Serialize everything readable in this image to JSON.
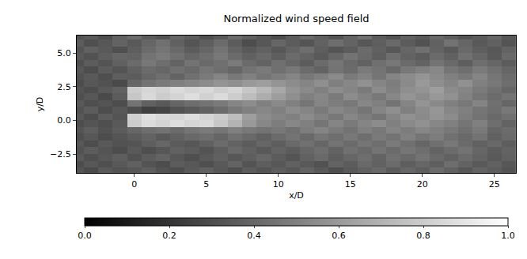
{
  "chart_data": {
    "type": "heatmap",
    "title": "Normalized wind speed field",
    "xlabel": "x/D",
    "ylabel": "y/D",
    "xlim": [
      -4,
      26.5
    ],
    "ylim": [
      -3.9,
      6.3
    ],
    "xticks": [
      0,
      5,
      10,
      15,
      20,
      25
    ],
    "yticks": [
      {
        "value": -2.5,
        "label": "−2.5"
      },
      {
        "value": 0,
        "label": "0.0"
      },
      {
        "value": 2.5,
        "label": "2.5"
      },
      {
        "value": 5,
        "label": "5.0"
      }
    ],
    "colorbar_range": [
      0,
      1
    ],
    "colorbar_ticks": [
      {
        "value": 0,
        "label": "0.0"
      },
      0.2,
      0.4,
      0.6,
      0.8,
      {
        "value": 1,
        "label": "1.0"
      }
    ],
    "x": [
      -4,
      -3,
      -2,
      -1,
      0,
      1,
      2,
      3,
      4,
      5,
      6,
      7,
      8,
      9,
      10,
      11,
      12,
      13,
      14,
      15,
      16,
      17,
      18,
      19,
      20,
      21,
      22,
      23,
      24,
      25,
      26
    ],
    "y": [
      -3.75,
      -3.25,
      -2.75,
      -2.25,
      -1.75,
      -1.25,
      -0.75,
      -0.25,
      0.25,
      0.75,
      1.25,
      1.75,
      2.25,
      2.75,
      3.25,
      3.75,
      4.25,
      4.75,
      5.25,
      5.75,
      6.25
    ],
    "z": [
      [
        0.33,
        0.29,
        0.35,
        0.32,
        0.34,
        0.37,
        0.32,
        0.3,
        0.35,
        0.38,
        0.34,
        0.31,
        0.36,
        0.33,
        0.37,
        0.34,
        0.39,
        0.35,
        0.31,
        0.35,
        0.38,
        0.41,
        0.36,
        0.4,
        0.37,
        0.42,
        0.38,
        0.34,
        0.39,
        0.36,
        0.33
      ],
      [
        0.3,
        0.34,
        0.31,
        0.35,
        0.38,
        0.33,
        0.3,
        0.36,
        0.34,
        0.31,
        0.35,
        0.39,
        0.33,
        0.37,
        0.34,
        0.38,
        0.35,
        0.32,
        0.39,
        0.36,
        0.41,
        0.38,
        0.42,
        0.37,
        0.4,
        0.37,
        0.43,
        0.39,
        0.35,
        0.38,
        0.34
      ],
      [
        0.35,
        0.31,
        0.34,
        0.37,
        0.32,
        0.36,
        0.39,
        0.34,
        0.31,
        0.35,
        0.38,
        0.34,
        0.37,
        0.4,
        0.36,
        0.33,
        0.38,
        0.41,
        0.37,
        0.4,
        0.43,
        0.39,
        0.44,
        0.41,
        0.45,
        0.41,
        0.38,
        0.42,
        0.39,
        0.35,
        0.38
      ],
      [
        0.32,
        0.36,
        0.33,
        0.3,
        0.35,
        0.31,
        0.34,
        0.38,
        0.36,
        0.33,
        0.37,
        0.41,
        0.38,
        0.35,
        0.39,
        0.36,
        0.4,
        0.43,
        0.39,
        0.44,
        0.41,
        0.45,
        0.42,
        0.46,
        0.43,
        0.39,
        0.42,
        0.45,
        0.4,
        0.36,
        0.39
      ],
      [
        0.34,
        0.3,
        0.35,
        0.32,
        0.33,
        0.37,
        0.4,
        0.36,
        0.34,
        0.38,
        0.42,
        0.39,
        0.36,
        0.4,
        0.37,
        0.41,
        0.44,
        0.4,
        0.45,
        0.42,
        0.46,
        0.43,
        0.48,
        0.44,
        0.4,
        0.44,
        0.47,
        0.42,
        0.38,
        0.41,
        0.37
      ],
      [
        0.31,
        0.34,
        0.3,
        0.33,
        0.36,
        0.39,
        0.35,
        0.38,
        0.41,
        0.43,
        0.4,
        0.44,
        0.41,
        0.38,
        0.42,
        0.45,
        0.41,
        0.46,
        0.43,
        0.47,
        0.43,
        0.48,
        0.45,
        0.5,
        0.46,
        0.49,
        0.44,
        0.41,
        0.45,
        0.38,
        0.41
      ],
      [
        0.33,
        0.37,
        0.32,
        0.36,
        0.4,
        0.43,
        0.45,
        0.42,
        0.46,
        0.48,
        0.46,
        0.5,
        0.47,
        0.45,
        0.47,
        0.44,
        0.49,
        0.52,
        0.48,
        0.45,
        0.5,
        0.47,
        0.52,
        0.49,
        0.53,
        0.5,
        0.47,
        0.44,
        0.48,
        0.4,
        0.42
      ],
      [
        0.3,
        0.33,
        0.31,
        0.35,
        0.8,
        0.86,
        0.83,
        0.87,
        0.84,
        0.85,
        0.78,
        0.7,
        0.6,
        0.53,
        0.49,
        0.53,
        0.5,
        0.46,
        0.52,
        0.48,
        0.52,
        0.55,
        0.5,
        0.54,
        0.57,
        0.53,
        0.5,
        0.46,
        0.5,
        0.43,
        0.39
      ],
      [
        0.34,
        0.3,
        0.36,
        0.33,
        0.82,
        0.88,
        0.85,
        0.84,
        0.87,
        0.83,
        0.8,
        0.74,
        0.62,
        0.55,
        0.52,
        0.5,
        0.55,
        0.51,
        0.47,
        0.53,
        0.49,
        0.46,
        0.52,
        0.57,
        0.54,
        0.58,
        0.55,
        0.49,
        0.45,
        0.41,
        0.44
      ],
      [
        0.32,
        0.36,
        0.3,
        0.34,
        0.3,
        0.25,
        0.27,
        0.32,
        0.35,
        0.38,
        0.42,
        0.47,
        0.5,
        0.53,
        0.5,
        0.55,
        0.52,
        0.48,
        0.53,
        0.5,
        0.46,
        0.52,
        0.56,
        0.5,
        0.55,
        0.59,
        0.53,
        0.5,
        0.46,
        0.43,
        0.47
      ],
      [
        0.35,
        0.31,
        0.33,
        0.3,
        0.45,
        0.38,
        0.35,
        0.4,
        0.43,
        0.45,
        0.48,
        0.52,
        0.55,
        0.5,
        0.54,
        0.5,
        0.46,
        0.52,
        0.49,
        0.47,
        0.53,
        0.5,
        0.45,
        0.52,
        0.58,
        0.54,
        0.5,
        0.47,
        0.52,
        0.44,
        0.4
      ],
      [
        0.31,
        0.34,
        0.29,
        0.36,
        0.78,
        0.85,
        0.8,
        0.83,
        0.87,
        0.82,
        0.86,
        0.8,
        0.74,
        0.68,
        0.62,
        0.56,
        0.5,
        0.53,
        0.48,
        0.55,
        0.51,
        0.47,
        0.53,
        0.58,
        0.55,
        0.6,
        0.57,
        0.51,
        0.46,
        0.42,
        0.45
      ],
      [
        0.33,
        0.3,
        0.35,
        0.38,
        0.8,
        0.84,
        0.82,
        0.86,
        0.83,
        0.85,
        0.81,
        0.84,
        0.78,
        0.72,
        0.66,
        0.58,
        0.54,
        0.5,
        0.55,
        0.52,
        0.48,
        0.55,
        0.5,
        0.56,
        0.58,
        0.62,
        0.55,
        0.52,
        0.48,
        0.44,
        0.4
      ],
      [
        0.3,
        0.34,
        0.32,
        0.29,
        0.4,
        0.45,
        0.48,
        0.5,
        0.52,
        0.55,
        0.58,
        0.56,
        0.6,
        0.62,
        0.58,
        0.55,
        0.52,
        0.56,
        0.5,
        0.53,
        0.57,
        0.52,
        0.49,
        0.54,
        0.6,
        0.56,
        0.52,
        0.57,
        0.5,
        0.47,
        0.43
      ],
      [
        0.32,
        0.35,
        0.31,
        0.37,
        0.36,
        0.4,
        0.43,
        0.39,
        0.44,
        0.48,
        0.52,
        0.47,
        0.5,
        0.46,
        0.49,
        0.52,
        0.47,
        0.5,
        0.54,
        0.48,
        0.51,
        0.46,
        0.52,
        0.55,
        0.58,
        0.54,
        0.5,
        0.47,
        0.52,
        0.46,
        0.42
      ],
      [
        0.34,
        0.3,
        0.36,
        0.33,
        0.38,
        0.42,
        0.4,
        0.44,
        0.41,
        0.46,
        0.43,
        0.4,
        0.45,
        0.48,
        0.44,
        0.47,
        0.42,
        0.39,
        0.45,
        0.42,
        0.48,
        0.45,
        0.41,
        0.47,
        0.5,
        0.53,
        0.46,
        0.43,
        0.48,
        0.44,
        0.4
      ],
      [
        0.31,
        0.36,
        0.33,
        0.38,
        0.42,
        0.47,
        0.43,
        0.39,
        0.45,
        0.41,
        0.44,
        0.48,
        0.42,
        0.39,
        0.44,
        0.4,
        0.36,
        0.42,
        0.46,
        0.41,
        0.38,
        0.44,
        0.47,
        0.42,
        0.39,
        0.45,
        0.41,
        0.37,
        0.43,
        0.4,
        0.36
      ],
      [
        0.35,
        0.32,
        0.37,
        0.4,
        0.39,
        0.45,
        0.48,
        0.44,
        0.4,
        0.43,
        0.47,
        0.42,
        0.38,
        0.41,
        0.37,
        0.42,
        0.39,
        0.35,
        0.4,
        0.45,
        0.41,
        0.37,
        0.43,
        0.39,
        0.36,
        0.42,
        0.38,
        0.44,
        0.4,
        0.35,
        0.41
      ],
      [
        0.33,
        0.38,
        0.35,
        0.31,
        0.37,
        0.42,
        0.46,
        0.41,
        0.36,
        0.4,
        0.45,
        0.39,
        0.35,
        0.38,
        0.34,
        0.39,
        0.43,
        0.37,
        0.33,
        0.36,
        0.42,
        0.38,
        0.34,
        0.4,
        0.44,
        0.39,
        0.35,
        0.41,
        0.37,
        0.34,
        0.39
      ],
      [
        0.36,
        0.31,
        0.34,
        0.39,
        0.35,
        0.4,
        0.44,
        0.38,
        0.33,
        0.37,
        0.42,
        0.36,
        0.3,
        0.34,
        0.4,
        0.36,
        0.33,
        0.38,
        0.43,
        0.39,
        0.34,
        0.37,
        0.41,
        0.36,
        0.32,
        0.38,
        0.45,
        0.4,
        0.35,
        0.38,
        0.33
      ],
      [
        0.32,
        0.35,
        0.3,
        0.38,
        0.42,
        0.36,
        0.33,
        0.4,
        0.37,
        0.31,
        0.35,
        0.42,
        0.38,
        0.34,
        0.3,
        0.36,
        0.41,
        0.37,
        0.33,
        0.39,
        0.44,
        0.36,
        0.32,
        0.38,
        0.35,
        0.41,
        0.37,
        0.33,
        0.36,
        0.4,
        0.34
      ]
    ]
  }
}
